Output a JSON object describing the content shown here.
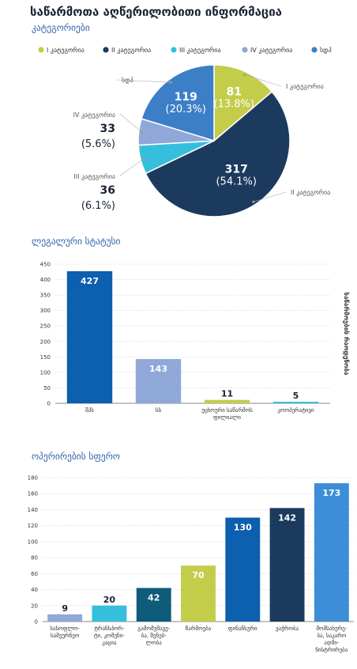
{
  "title": "საწარმოთა აღწერილობითი ინფორმაცია",
  "sections": {
    "categories": "კატეგორიები",
    "legal": "ლეგალური სტატუსი",
    "operations": "ოპერირების სფერო"
  },
  "colors": {
    "cat1": "#c3cd4a",
    "cat2": "#1b3a5e",
    "cat3": "#35bfdc",
    "cat4": "#8fa8d8",
    "other": "#3c7fc6"
  },
  "chart_data": [
    {
      "type": "pie",
      "title": "კატეგორიები",
      "legend": [
        "I კატეგორია",
        "II კატეგორია",
        "III კატეგორია",
        "IV კატეგორია",
        "სდპ"
      ],
      "legend_placement": "top",
      "slices": [
        {
          "label": "I კატეგორია",
          "value": 81,
          "pct": "(13.8%)"
        },
        {
          "label": "II კატეგორია",
          "value": 317,
          "pct": "(54.1%)"
        },
        {
          "label": "III კატეგორია",
          "value": 36,
          "pct": "(6.1%)"
        },
        {
          "label": "IV კატეგორია",
          "value": 33,
          "pct": "(5.6%)"
        },
        {
          "label": "სდპ",
          "value": 119,
          "pct": "(20.3%)"
        }
      ]
    },
    {
      "type": "bar",
      "title": "ლეგალური სტატუსი",
      "ylabel": "საწარმოების რაოდენობა",
      "ylim": [
        0,
        450
      ],
      "yticks": [
        0,
        50,
        100,
        150,
        200,
        250,
        300,
        350,
        400,
        450
      ],
      "categories": [
        "შპს",
        "სს",
        "უცხოური საწარმოს ფილიალი",
        "კოოპერატივი"
      ],
      "category_lines": [
        [
          "შპს"
        ],
        [
          "სს"
        ],
        [
          "უცხოური საწარმოს",
          "ფილიალი"
        ],
        [
          "კოოპერატივი"
        ]
      ],
      "values": [
        427,
        143,
        11,
        5
      ],
      "bar_colors": [
        "#0d5fb0",
        "#8fa8d8",
        "#c3cd4a",
        "#35bfdc"
      ],
      "grid": true
    },
    {
      "type": "bar",
      "title": "ოპერირების სფერო",
      "ylim": [
        0,
        180
      ],
      "yticks": [
        0,
        20,
        40,
        60,
        80,
        100,
        120,
        140,
        160,
        180
      ],
      "categories": [
        "სასოფლო-სამეურნეო",
        "ტრანსპორტი, კომუნიკაცია",
        "გამომუშავება, შენებლობა",
        "წარმოება",
        "ფინანსური",
        "ვაჭრობა",
        "მომსახურება, საკაროადმინისტრირება"
      ],
      "category_lines": [
        [
          "სასოფლო-",
          "სამეურნეო"
        ],
        [
          "ტრანსპორ-",
          "ტი, კომუნი-",
          "კაცია"
        ],
        [
          "გამომუშავე-",
          "ბა, შენებ-",
          "ლობა"
        ],
        [
          "წარმოება"
        ],
        [
          "ფინანსური"
        ],
        [
          "ვაჭრობა"
        ],
        [
          "მომსახურე-",
          "ბა, საკარო",
          "ადმი-",
          "ნისტრირება"
        ]
      ],
      "values": [
        9,
        20,
        42,
        70,
        130,
        142,
        173
      ],
      "bar_colors": [
        "#8fa8d8",
        "#35bfdc",
        "#0e5c7a",
        "#c3cd4a",
        "#0d5fb0",
        "#1b3a5e",
        "#3c8ed6"
      ],
      "grid": true
    }
  ]
}
